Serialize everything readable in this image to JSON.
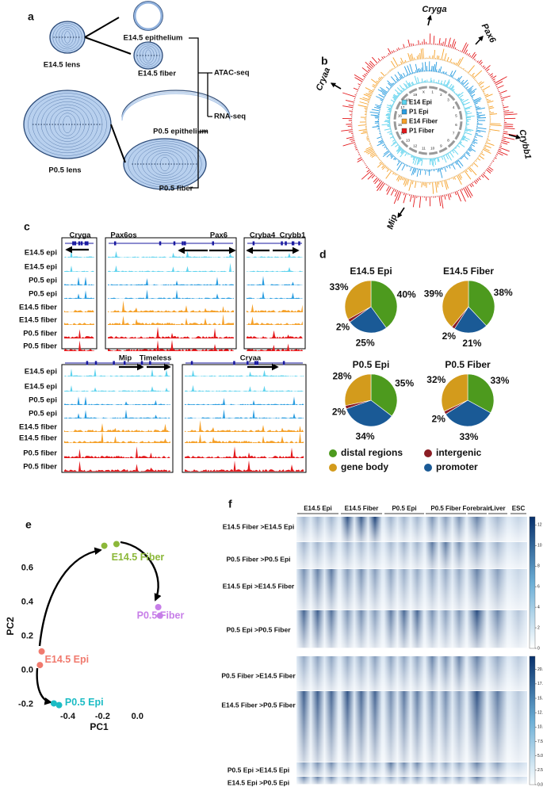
{
  "panel_labels": [
    "a",
    "b",
    "c",
    "d",
    "e",
    "f"
  ],
  "panel_a": {
    "samples": [
      "E14.5 lens",
      "E14.5 epithelium",
      "E14.5 fiber",
      "P0.5 epithelium",
      "P0.5 lens",
      "P0.5 fiber"
    ],
    "assays": [
      "ATAC-seq",
      "RNA-seq"
    ]
  },
  "panel_b": {
    "genes": [
      "Cryga",
      "Pax6",
      "Crybb1",
      "Mip",
      "Cryaa"
    ],
    "legend": [
      {
        "name": "E14 Epi",
        "color": "#5fd3ee"
      },
      {
        "name": "P1 Epi",
        "color": "#2a9de0"
      },
      {
        "name": "E14 Fiber",
        "color": "#f5a12a"
      },
      {
        "name": "P1 Fiber",
        "color": "#e3191c"
      }
    ],
    "chromosomes": [
      "1",
      "2",
      "3",
      "4",
      "5",
      "6",
      "7",
      "8",
      "9",
      "10",
      "11",
      "12",
      "13",
      "14",
      "15",
      "16",
      "17",
      "18",
      "19",
      "X"
    ]
  },
  "panel_c": {
    "top": {
      "genes": [
        "Cryga",
        "Pax6os",
        "Pax6",
        "Cryba4",
        "Crybb1"
      ],
      "tracks": [
        "E14.5 epi",
        "E14.5 epi",
        "P0.5 epi",
        "P0.5 epi",
        "E14.5 fiber",
        "E14.5 fiber",
        "P0.5 fiber",
        "P0.5 fiber"
      ]
    },
    "bottom": {
      "genes": [
        "Mip",
        "Timeless",
        "Cryaa"
      ],
      "tracks": [
        "E14.5 epi",
        "E14.5 epi",
        "P0.5 epi",
        "P0.5 epi",
        "E14.5 fiber",
        "E14.5 fiber",
        "P0.5 fiber",
        "P0.5 fiber"
      ]
    }
  },
  "chart_data": [
    {
      "type": "pie",
      "title": "E14.5 Epi",
      "categories": [
        "distal regions",
        "promoter",
        "intergenic",
        "gene body"
      ],
      "colors": [
        "#4d9a1e",
        "#1a5a96",
        "#8b1d24",
        "#d39b1c"
      ],
      "values": [
        40,
        25,
        2,
        33
      ],
      "value_labels": [
        "40%",
        "25%",
        "2%",
        "33%"
      ]
    },
    {
      "type": "pie",
      "title": "E14.5 Fiber",
      "categories": [
        "distal regions",
        "promoter",
        "intergenic",
        "gene body"
      ],
      "colors": [
        "#4d9a1e",
        "#1a5a96",
        "#8b1d24",
        "#d39b1c"
      ],
      "values": [
        38,
        21,
        2,
        39
      ],
      "value_labels": [
        "38%",
        "21%",
        "2%",
        "39%"
      ]
    },
    {
      "type": "pie",
      "title": "P0.5 Epi",
      "categories": [
        "distal regions",
        "promoter",
        "intergenic",
        "gene body"
      ],
      "colors": [
        "#4d9a1e",
        "#1a5a96",
        "#8b1d24",
        "#d39b1c"
      ],
      "values": [
        35,
        34,
        2,
        28
      ],
      "value_labels": [
        "35%",
        "34%",
        "2%",
        "28%"
      ]
    },
    {
      "type": "pie",
      "title": "P0.5 Fiber",
      "categories": [
        "distal regions",
        "promoter",
        "intergenic",
        "gene body"
      ],
      "colors": [
        "#4d9a1e",
        "#1a5a96",
        "#8b1d24",
        "#d39b1c"
      ],
      "values": [
        33,
        33,
        2,
        32
      ],
      "value_labels": [
        "33%",
        "33%",
        "2%",
        "32%"
      ]
    },
    {
      "type": "scatter",
      "xlabel": "PC1",
      "ylabel": "PC2",
      "xlim": [
        -0.63,
        0.19
      ],
      "ylim": [
        -0.23,
        0.77
      ],
      "xticks": [
        -0.4,
        -0.2,
        {
          "value": 0,
          "label": "0.0"
        }
      ],
      "yticks": [
        0.6,
        0.4,
        0.2,
        {
          "value": 0,
          "label": "0.0"
        },
        -0.2
      ],
      "series": [
        {
          "name": "E14.5 Fiber",
          "color": "#8cb83a",
          "x": [
            -0.19,
            -0.12
          ],
          "values": [
            0.73,
            0.74
          ]
        },
        {
          "name": "P0.5 Fiber",
          "color": "#c77ee8",
          "x": [
            0.12,
            0.13
          ],
          "values": [
            0.37,
            0.32
          ]
        },
        {
          "name": "E14.5 Epi",
          "color": "#f07a6e",
          "x": [
            -0.55,
            -0.56
          ],
          "values": [
            0.11,
            0.03
          ]
        },
        {
          "name": "P0.5 Epi",
          "color": "#1bbcc4",
          "x": [
            -0.48,
            -0.45
          ],
          "values": [
            -0.195,
            -0.205
          ]
        }
      ]
    }
  ],
  "panel_f": {
    "columns": [
      "E14.5 Epi",
      "E14.5 Fiber",
      "P0.5 Epi",
      "P0.5 Fiber",
      "Forebrain",
      "Liver",
      "ESC"
    ],
    "top_rows": [
      "E14.5 Fiber >E14.5 Epi",
      "P0.5 Fiber >P0.5 Epi",
      "E14.5 Epi >E14.5 Fiber",
      "P0.5 Epi >P0.5 Fiber"
    ],
    "bottom_rows": [
      "P0.5 Fiber >E14.5 Fiber",
      "E14.5 Fiber >P0.5 Fiber",
      "P0.5 Epi >E14.5 Epi",
      "E14.5 Epi >P0.5 Epi"
    ],
    "colorbar_top_lim": [
      0,
      12.8
    ],
    "colorbar_top_ticks": [
      12,
      10,
      8,
      6,
      4,
      2,
      0
    ],
    "colorbar_bottom_lim": [
      0,
      22.3
    ],
    "colorbar_bottom_ticks": [
      {
        "value": 20,
        "label": "20.0"
      },
      17.5,
      {
        "value": 15,
        "label": "15.0"
      },
      12.5,
      {
        "value": 10,
        "label": "10.0"
      },
      7.5,
      {
        "value": 5,
        "label": "5.0"
      },
      2.5,
      {
        "value": 0,
        "label": "0.0"
      }
    ]
  }
}
